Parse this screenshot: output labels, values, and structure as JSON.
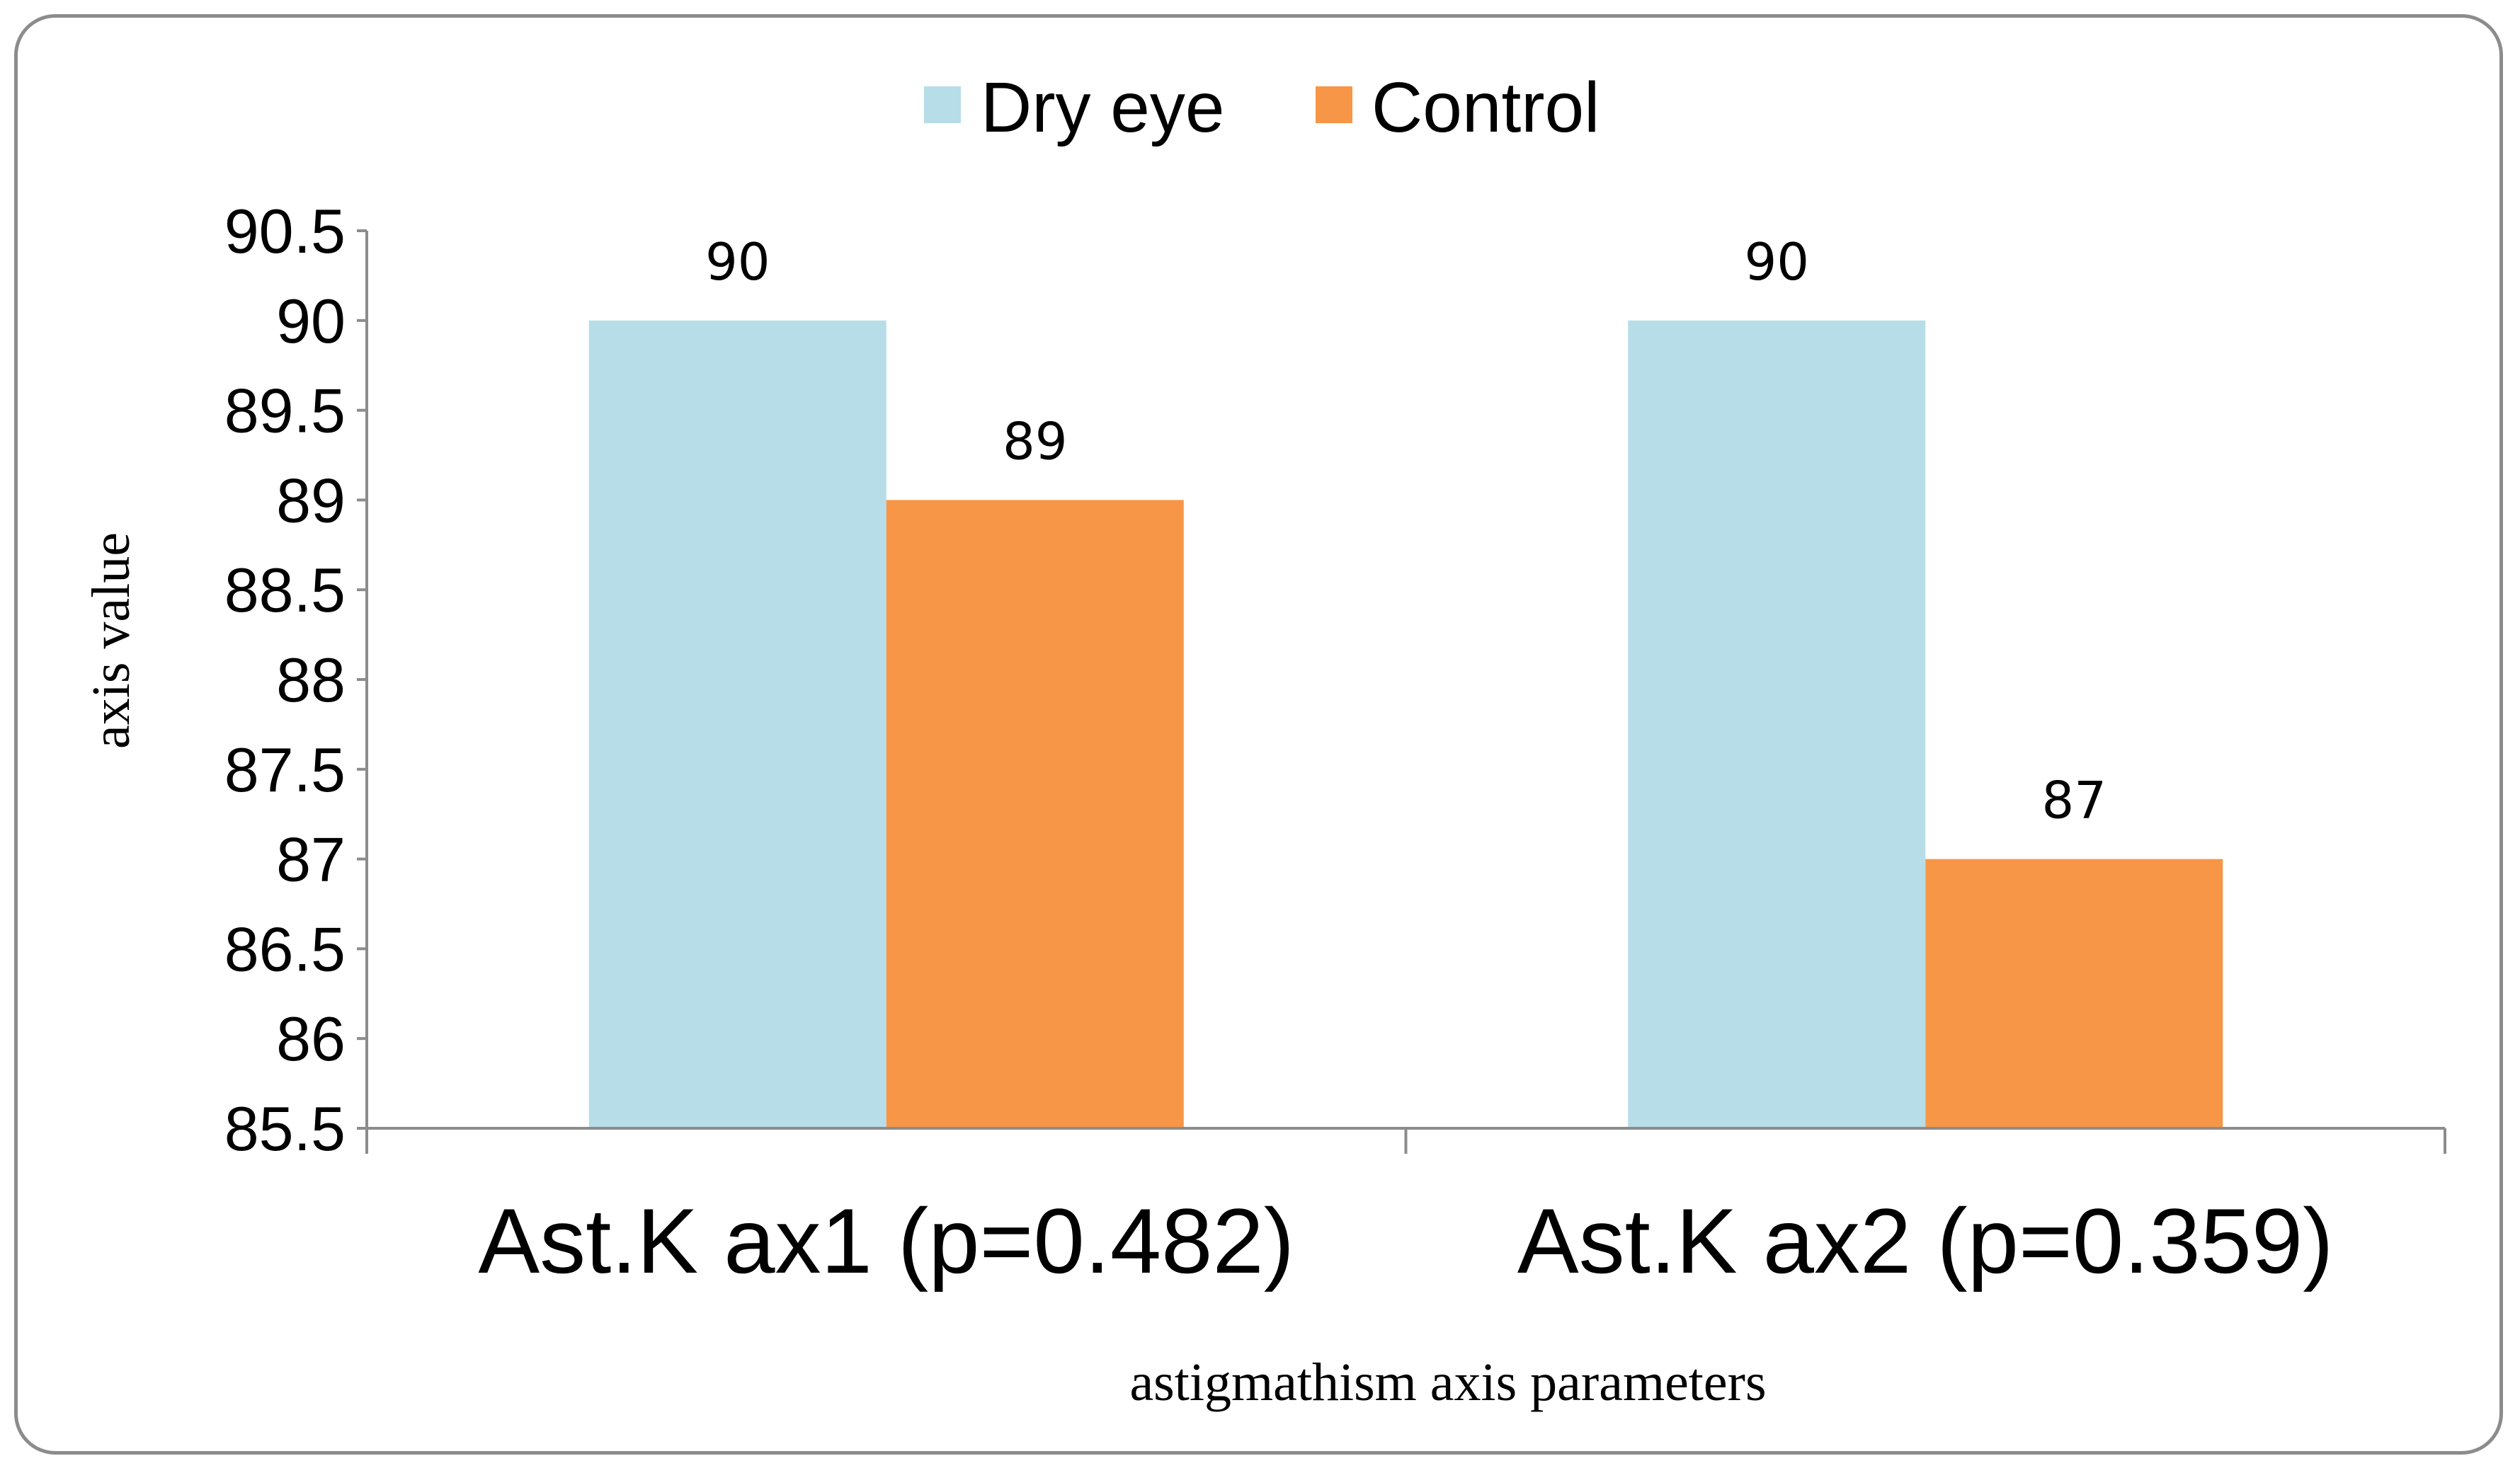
{
  "chart_data": {
    "type": "bar",
    "categories": [
      "Ast.K ax1 (p=0.482)",
      "Ast.K ax2 (p=0.359)"
    ],
    "series": [
      {
        "name": "Dry eye",
        "color": "#b7dde8",
        "values": [
          90,
          90
        ],
        "labels": [
          "90",
          "90"
        ]
      },
      {
        "name": "Control",
        "color": "#f79646",
        "values": [
          89,
          87
        ],
        "labels": [
          "89",
          "87"
        ]
      }
    ],
    "title": "",
    "xlabel": "astigmathism axis parameters",
    "ylabel": "axis value",
    "ylim": [
      85.5,
      90.5
    ],
    "yticks": [
      "85.5",
      "86",
      "86.5",
      "87",
      "87.5",
      "88",
      "88.5",
      "89",
      "89.5",
      "90",
      "90.5"
    ],
    "legend_position": "top-center",
    "grid": false,
    "axis_color": "#8c8c8c"
  }
}
